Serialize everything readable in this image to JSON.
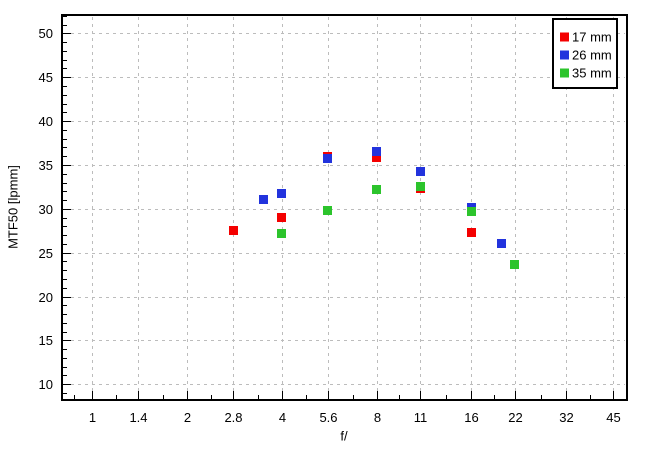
{
  "chart_data": {
    "type": "scatter",
    "title": "",
    "xlabel": "f/",
    "ylabel": "MTF50 [lpmm]",
    "x_scale": "log-fstops",
    "x_ticks": [
      "1",
      "1.4",
      "2",
      "2.8",
      "4",
      "5.6",
      "8",
      "11",
      "16",
      "22",
      "32",
      "45"
    ],
    "x_tick_values": [
      1,
      1.4,
      2,
      2.8,
      4,
      5.6,
      8,
      11,
      16,
      22,
      32,
      45
    ],
    "y_ticks": [
      10,
      15,
      20,
      25,
      30,
      35,
      40,
      45,
      50
    ],
    "y_minor_step": 1,
    "xlim": [
      0.8,
      50
    ],
    "ylim": [
      8.2,
      52.1
    ],
    "grid": "dashed",
    "grid_color": "#bcbcbc",
    "axis_color": "#000000",
    "background_color": "#ffffff",
    "legend_position": "top-right",
    "marker": "square",
    "marker_size": 9,
    "series": [
      {
        "name": "17 mm",
        "color": "#f40000",
        "points": [
          [
            2.8,
            27.5
          ],
          [
            4,
            29.0
          ],
          [
            5.6,
            36.0
          ],
          [
            8,
            35.9
          ],
          [
            11,
            32.3
          ],
          [
            16,
            27.3
          ]
        ]
      },
      {
        "name": "26 mm",
        "color": "#2233dd",
        "points": [
          [
            3.5,
            31.1
          ],
          [
            4,
            31.8
          ],
          [
            5.6,
            35.7
          ],
          [
            8,
            36.5
          ],
          [
            11,
            34.2
          ],
          [
            16,
            30.1
          ],
          [
            20,
            26.1
          ]
        ]
      },
      {
        "name": "35 mm",
        "color": "#2cc42c",
        "points": [
          [
            4,
            27.2
          ],
          [
            5.6,
            29.8
          ],
          [
            8,
            32.2
          ],
          [
            11,
            32.6
          ],
          [
            16,
            29.7
          ],
          [
            22,
            23.7
          ]
        ]
      }
    ]
  }
}
